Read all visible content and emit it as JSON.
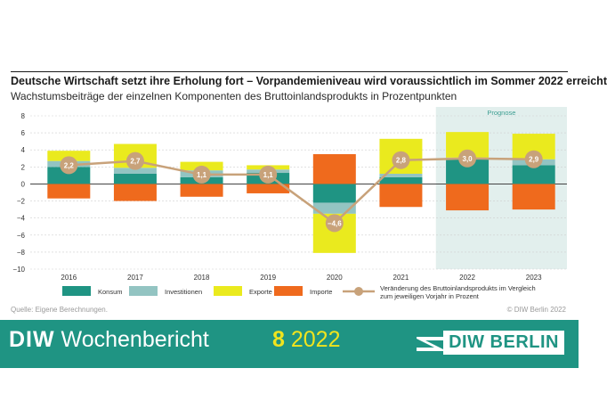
{
  "header": {
    "title": "Deutsche Wirtschaft setzt ihre Erholung fort – Vorpandemieniveau wird voraussichtlich im Sommer 2022 erreicht",
    "subtitle": "Wachstumsbeiträge der einzelnen Komponenten des Bruttoinlandsprodukts in Prozentpunkten"
  },
  "chart_data": {
    "type": "bar",
    "stacked": true,
    "categories": [
      "2016",
      "2017",
      "2018",
      "2019",
      "2020",
      "2021",
      "2022",
      "2023"
    ],
    "ylim": [
      -10,
      8
    ],
    "yticks": [
      -10,
      -8,
      -6,
      -4,
      -2,
      0,
      2,
      4,
      6,
      8
    ],
    "ytick_labels": [
      "−10",
      "−8",
      "−6",
      "−4",
      "−2",
      "0",
      "2",
      "4",
      "6",
      "8"
    ],
    "forecast_label": "Prognose",
    "forecast_categories": [
      "2022",
      "2023"
    ],
    "series": [
      {
        "name": "Konsum",
        "color": "#1f9483",
        "values": [
          2.0,
          1.2,
          0.8,
          1.3,
          -2.2,
          0.8,
          3.0,
          2.2
        ]
      },
      {
        "name": "Investitionen",
        "color": "#93c4c2",
        "values": [
          0.7,
          0.7,
          0.8,
          0.4,
          -1.3,
          0.4,
          0.1,
          0.7
        ]
      },
      {
        "name": "Exporte",
        "color": "#eaea1e",
        "values": [
          1.2,
          2.8,
          1.0,
          0.5,
          -4.6,
          4.1,
          3.0,
          3.0
        ]
      },
      {
        "name": "Importe",
        "color": "#ef6a1d",
        "values": [
          -1.7,
          -2.0,
          -1.5,
          -1.1,
          3.5,
          -2.7,
          -3.1,
          -3.0
        ]
      }
    ],
    "line": {
      "name": "Veränderung des Bruttoinlandsprodukts im Vergleich zum jeweiligen Vorjahr in Prozent",
      "color": "#c8a27a",
      "values": [
        2.2,
        2.7,
        1.1,
        1.1,
        -4.6,
        2.8,
        3.0,
        2.9
      ],
      "labels": [
        "2,2",
        "2,7",
        "1,1",
        "1,1",
        "−4,6",
        "2,8",
        "3,0",
        "2,9"
      ]
    },
    "legend": [
      {
        "label": "Konsum",
        "color": "#1f9483",
        "kind": "box"
      },
      {
        "label": "Investitionen",
        "color": "#93c4c2",
        "kind": "box"
      },
      {
        "label": "Exporte",
        "color": "#eaea1e",
        "kind": "box"
      },
      {
        "label": "Importe",
        "color": "#ef6a1d",
        "kind": "box"
      },
      {
        "label1": "Veränderung des Bruttoinlandsprodukts im Vergleich",
        "label2": "zum jeweiligen Vorjahr in Prozent",
        "color": "#c8a27a",
        "kind": "line"
      }
    ]
  },
  "source": "Quelle: Eigene Berechnungen.",
  "copyright": "© DIW Berlin 2022",
  "footer": {
    "brand_bold": "DIW",
    "brand_rest": " Wochenbericht",
    "issue_number": "8",
    "issue_year": " 2022",
    "logo_text": "DIW BERLIN",
    "bg_color": "#1f9483"
  }
}
